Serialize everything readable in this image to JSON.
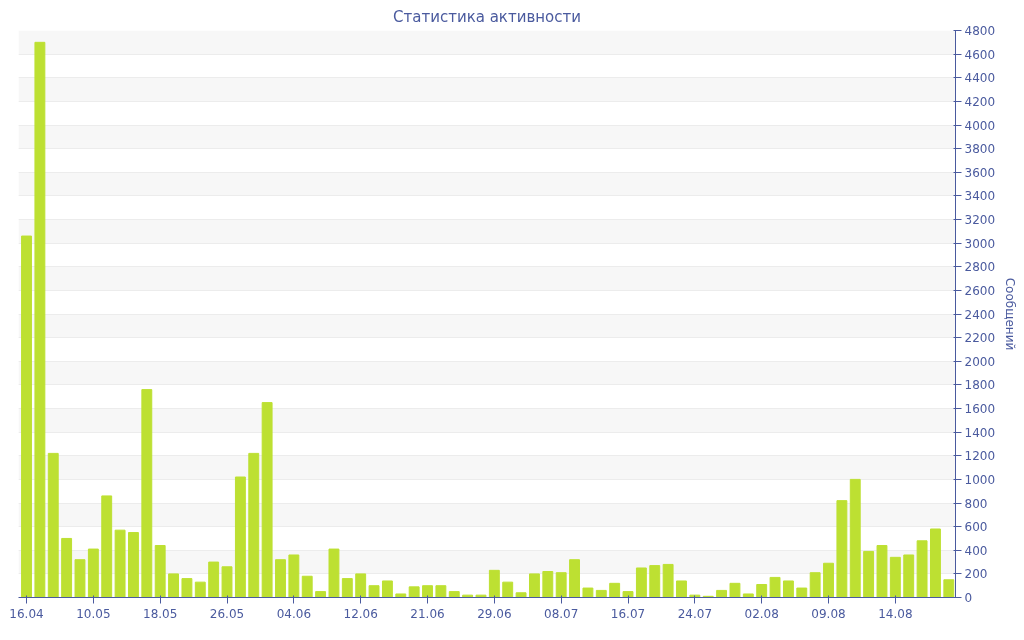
{
  "chart_data": {
    "type": "bar",
    "title": "Статистика активности",
    "ylabel": "Сообщений",
    "categories": [
      "16.04",
      null,
      null,
      null,
      null,
      "10.05",
      null,
      null,
      null,
      null,
      "18.05",
      null,
      null,
      null,
      null,
      "26.05",
      null,
      null,
      null,
      null,
      "04.06",
      null,
      null,
      null,
      null,
      "12.06",
      null,
      null,
      null,
      null,
      "21.06",
      null,
      null,
      null,
      null,
      "29.06",
      null,
      null,
      null,
      null,
      "08.07",
      null,
      null,
      null,
      null,
      "16.07",
      null,
      null,
      null,
      null,
      "24.07",
      null,
      null,
      null,
      null,
      "02.08",
      null,
      null,
      null,
      null,
      "09.08",
      null,
      null,
      null,
      null,
      "14.08",
      null,
      null,
      null,
      null
    ],
    "values": [
      3060,
      4700,
      1220,
      500,
      320,
      410,
      860,
      570,
      550,
      1760,
      440,
      200,
      160,
      130,
      300,
      260,
      1020,
      1220,
      1650,
      320,
      360,
      180,
      50,
      410,
      160,
      200,
      100,
      140,
      30,
      90,
      100,
      100,
      50,
      20,
      20,
      230,
      130,
      40,
      200,
      220,
      210,
      320,
      80,
      60,
      120,
      50,
      250,
      270,
      280,
      140,
      20,
      10,
      60,
      120,
      30,
      110,
      170,
      140,
      80,
      210,
      290,
      820,
      1000,
      390,
      440,
      340,
      360,
      480,
      580,
      150
    ],
    "color": "#bde032",
    "ylim": [
      0,
      4800
    ],
    "yticks": [
      0,
      200,
      400,
      600,
      800,
      1000,
      1200,
      1400,
      1600,
      1800,
      2000,
      2200,
      2400,
      2600,
      2800,
      3000,
      3200,
      3400,
      3600,
      3800,
      4000,
      4200,
      4400,
      4600,
      4800
    ],
    "grid": "y"
  }
}
